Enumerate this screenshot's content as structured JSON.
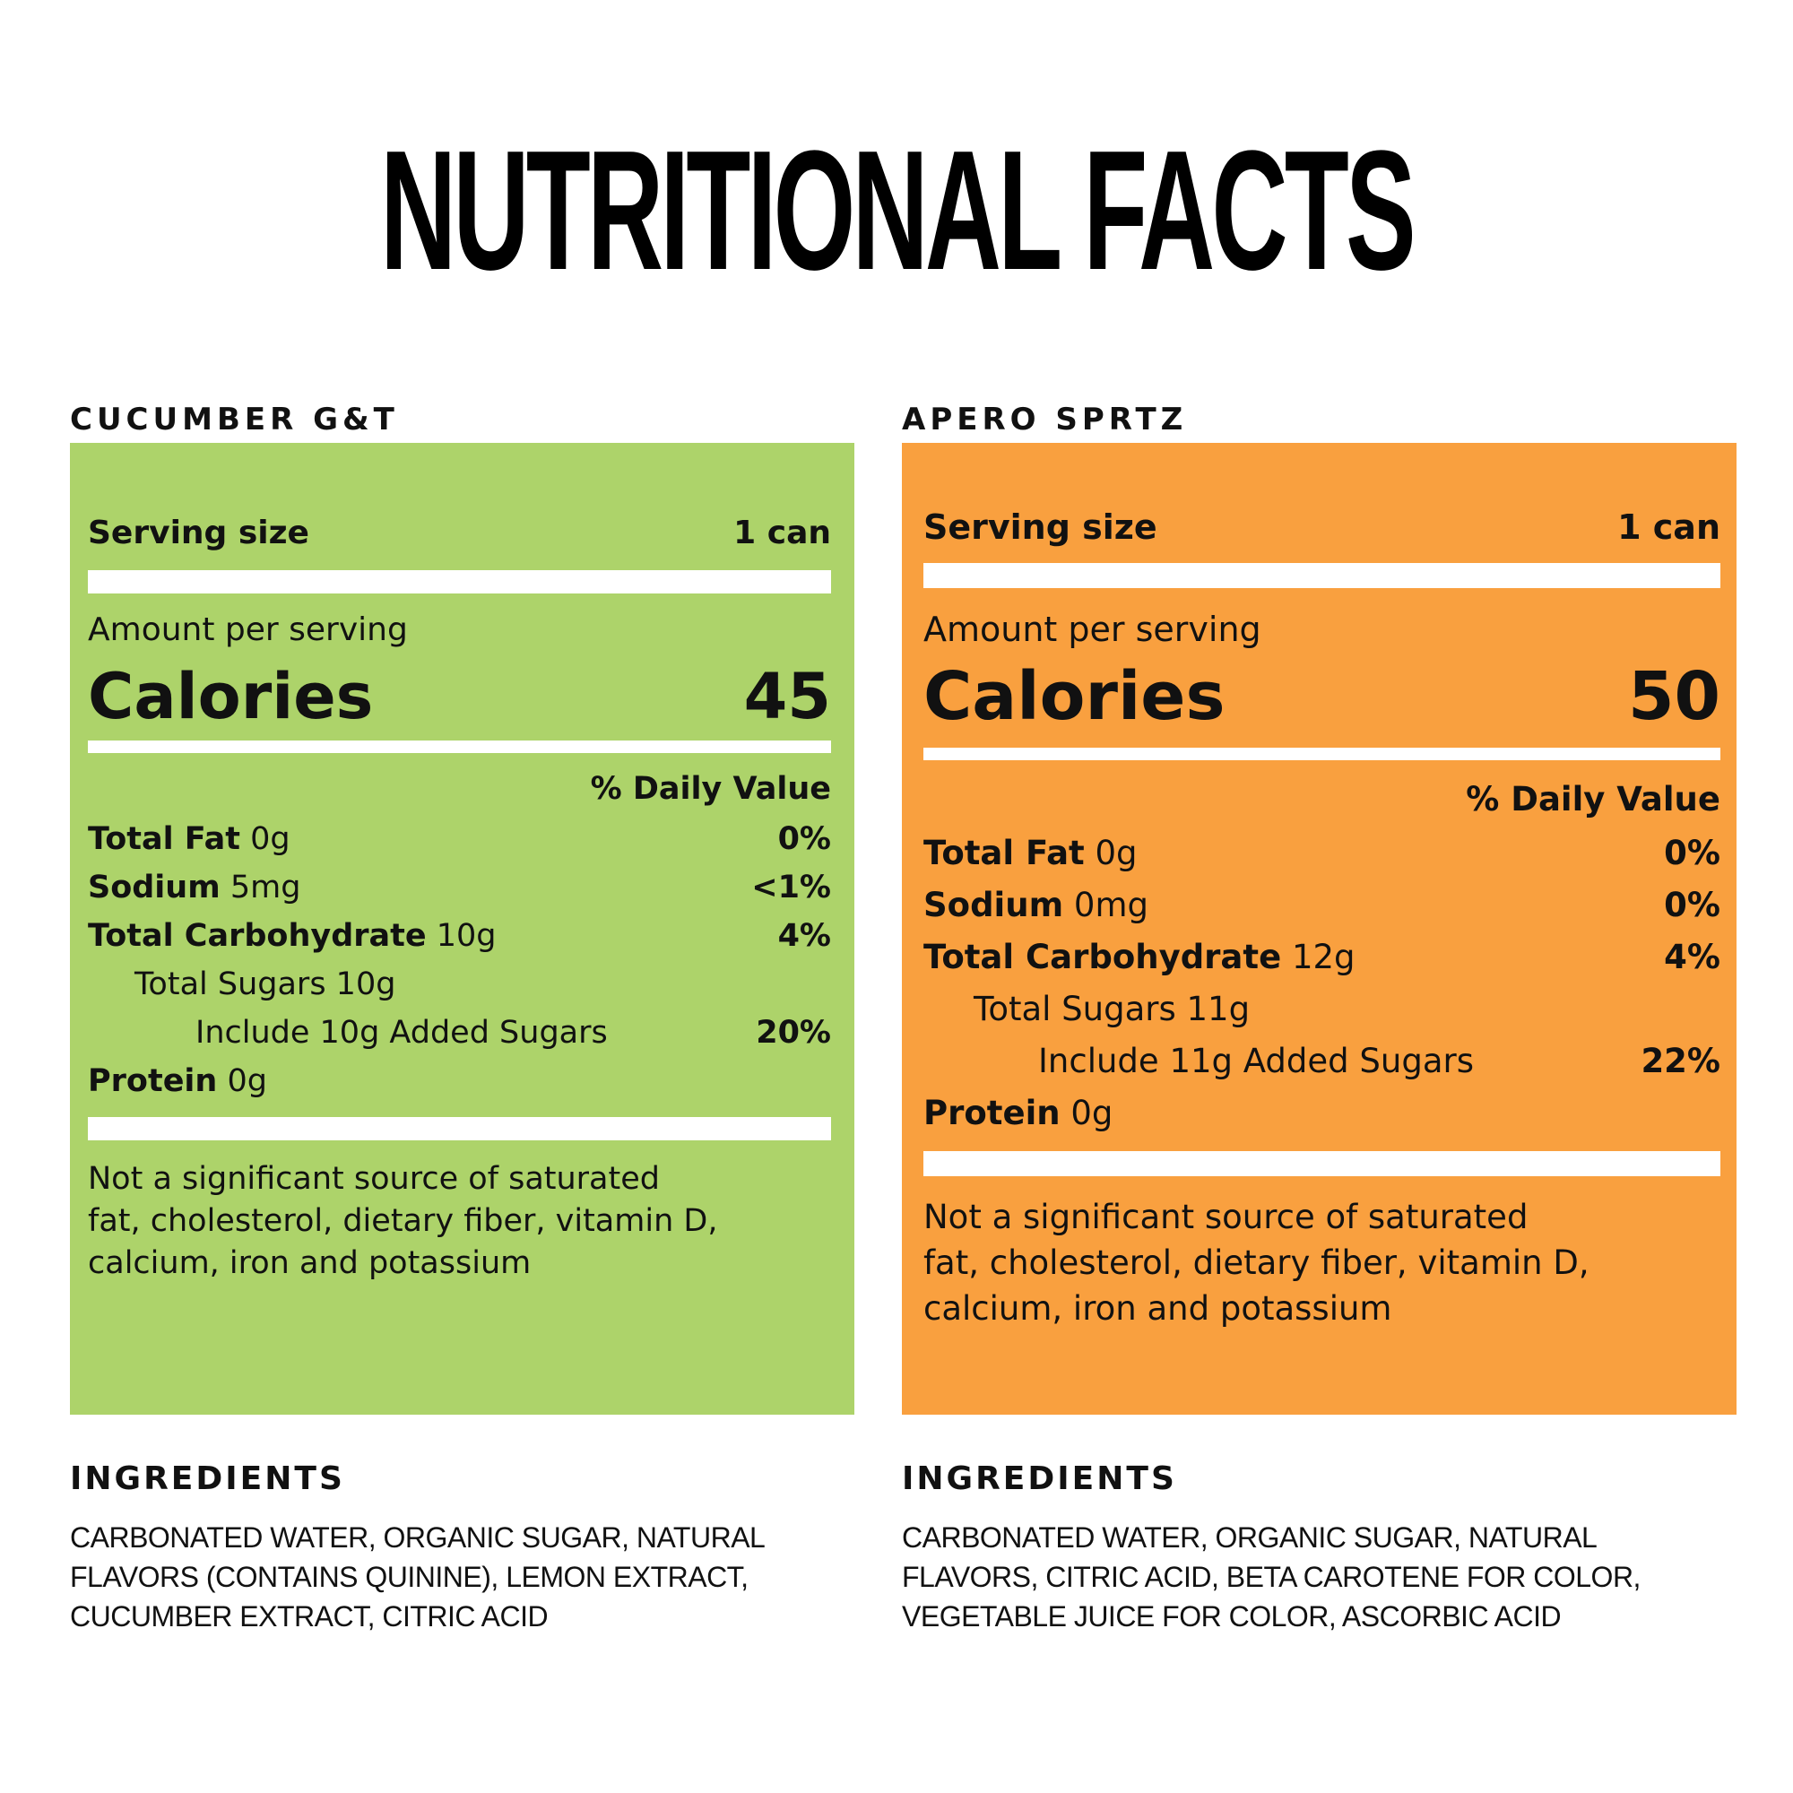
{
  "title": "NUTRITIONAL FACTS",
  "colors": {
    "left_panel": "#ADD36A",
    "right_panel": "#F9A03F",
    "bar": "#FFFFFF",
    "text": "#111111"
  },
  "products": [
    {
      "name": "CUCUMBER G&T",
      "serving_label": "Serving size",
      "serving_value": "1 can",
      "amount_per_serving": "Amount per serving",
      "calories_label": "Calories",
      "calories_value": "45",
      "daily_value_header": "% Daily Value",
      "nutrients": {
        "total_fat": {
          "label": "Total Fat",
          "amount": "0g",
          "dv": "0%"
        },
        "sodium": {
          "label": "Sodium",
          "amount": "5mg",
          "dv": "<1%"
        },
        "total_carbohydrate": {
          "label": "Total Carbohydrate",
          "amount": "10g",
          "dv": "4%"
        },
        "total_sugars": {
          "label": "Total Sugars 10g"
        },
        "added_sugars": {
          "label": "Include 10g Added Sugars",
          "dv": "20%"
        },
        "protein": {
          "label": "Protein",
          "amount": "0g"
        }
      },
      "footnote": [
        "Not a significant source of saturated",
        "fat, cholesterol, dietary fiber, vitamin D,",
        "calcium, iron and potassium"
      ],
      "ingredients_heading": "INGREDIENTS",
      "ingredients": [
        "CARBONATED WATER, ORGANIC SUGAR, NATURAL",
        "FLAVORS (CONTAINS QUININE), LEMON EXTRACT,",
        "CUCUMBER EXTRACT, CITRIC ACID"
      ]
    },
    {
      "name": "APERO SPRTZ",
      "serving_label": "Serving size",
      "serving_value": "1 can",
      "amount_per_serving": "Amount per serving",
      "calories_label": "Calories",
      "calories_value": "50",
      "daily_value_header": "% Daily Value",
      "nutrients": {
        "total_fat": {
          "label": "Total Fat",
          "amount": "0g",
          "dv": "0%"
        },
        "sodium": {
          "label": "Sodium",
          "amount": "0mg",
          "dv": "0%"
        },
        "total_carbohydrate": {
          "label": "Total Carbohydrate",
          "amount": "12g",
          "dv": "4%"
        },
        "total_sugars": {
          "label": "Total Sugars 11g"
        },
        "added_sugars": {
          "label": "Include 11g Added Sugars",
          "dv": "22%"
        },
        "protein": {
          "label": "Protein",
          "amount": "0g"
        }
      },
      "footnote": [
        "Not a significant source of saturated",
        "fat, cholesterol, dietary fiber, vitamin D,",
        "calcium, iron and potassium"
      ],
      "ingredients_heading": "INGREDIENTS",
      "ingredients": [
        "CARBONATED WATER, ORGANIC SUGAR, NATURAL",
        "FLAVORS, CITRIC ACID, BETA CAROTENE FOR COLOR,",
        "VEGETABLE JUICE FOR COLOR, ASCORBIC ACID"
      ]
    }
  ]
}
